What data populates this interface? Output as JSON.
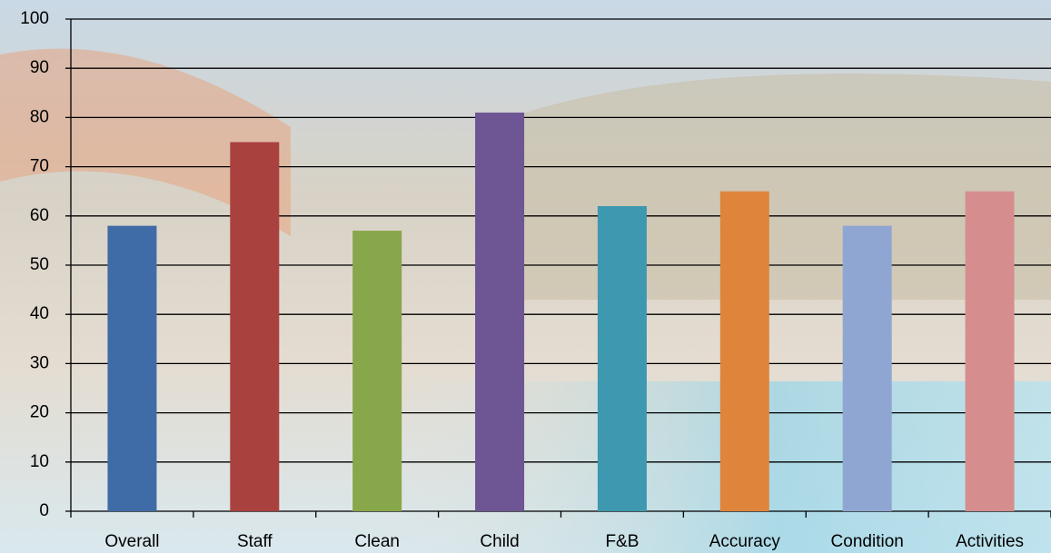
{
  "chart_data": {
    "type": "bar",
    "categories": [
      "Overall",
      "Staff",
      "Clean",
      "Child",
      "F&B",
      "Accuracy",
      "Condition",
      "Activities"
    ],
    "values": [
      58,
      75,
      57,
      81,
      62,
      65,
      58,
      65
    ],
    "colors": [
      "#3f6ca6",
      "#a9413f",
      "#88a64a",
      "#6e5593",
      "#3d98b0",
      "#df843b",
      "#90a6d2",
      "#d58e8d"
    ],
    "ylim": [
      0,
      100
    ],
    "yticks": [
      0,
      10,
      20,
      30,
      40,
      50,
      60,
      70,
      80,
      90,
      100
    ],
    "grid": true
  }
}
